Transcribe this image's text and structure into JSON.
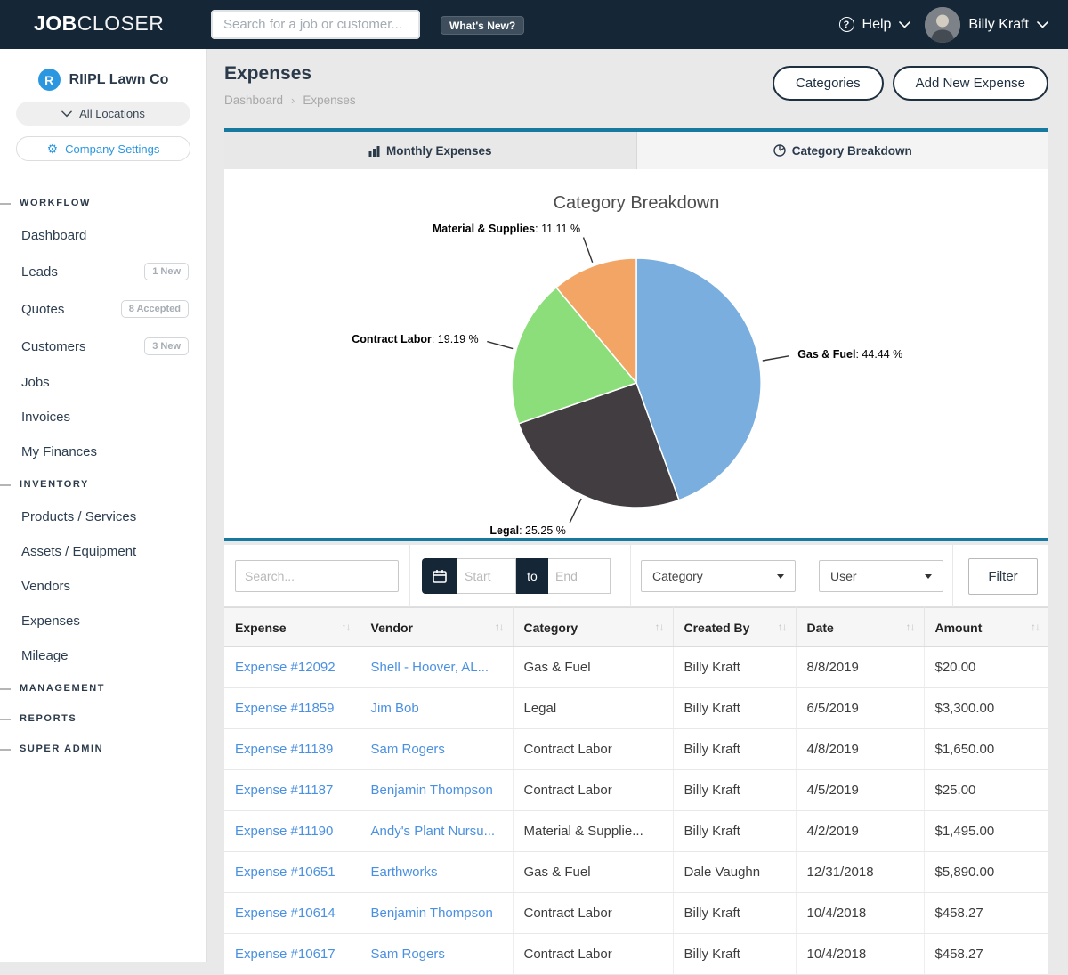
{
  "colors": {
    "navy": "#152636",
    "teal": "#1779a0",
    "accent_blue": "#2b97e0",
    "link_blue": "#4a90e2"
  },
  "navbar": {
    "logo_bold": "JOB",
    "logo_light": "CLOSER",
    "search_placeholder": "Search for a job or customer...",
    "whats_new_label": "What's New?",
    "help_label": "Help",
    "user_name": "Billy Kraft"
  },
  "sidebar": {
    "company_initial": "R",
    "company_name": "RIIPL Lawn Co",
    "location_selector_label": "All Locations",
    "company_settings_label": "Company Settings",
    "sections": [
      {
        "header": "WORKFLOW",
        "items": [
          {
            "label": "Dashboard"
          },
          {
            "label": "Leads",
            "badge": "1 New"
          },
          {
            "label": "Quotes",
            "badge": "8 Accepted"
          },
          {
            "label": "Customers",
            "badge": "3 New"
          },
          {
            "label": "Jobs"
          },
          {
            "label": "Invoices"
          },
          {
            "label": "My Finances"
          }
        ]
      },
      {
        "header": "INVENTORY",
        "items": [
          {
            "label": "Products / Services"
          },
          {
            "label": "Assets / Equipment"
          },
          {
            "label": "Vendors"
          },
          {
            "label": "Expenses"
          },
          {
            "label": "Mileage"
          }
        ]
      },
      {
        "header": "MANAGEMENT",
        "items": []
      },
      {
        "header": "REPORTS",
        "items": []
      },
      {
        "header": "SUPER ADMIN",
        "items": []
      }
    ]
  },
  "header": {
    "title": "Expenses",
    "breadcrumb": [
      "Dashboard",
      "Expenses"
    ],
    "breadcrumb_separator": "›",
    "categories_button": "Categories",
    "add_expense_button": "Add New Expense"
  },
  "tabs": {
    "monthly": "Monthly Expenses",
    "breakdown": "Category Breakdown"
  },
  "chart_data": {
    "type": "pie",
    "title": "Category Breakdown",
    "start_angle_deg": 0,
    "direction": "clockwise",
    "legend": "none",
    "labels": "outside-with-leader-lines",
    "slices": [
      {
        "label": "Gas & Fuel",
        "value": 44.44,
        "display": "44.44 %",
        "color": "#79aede"
      },
      {
        "label": "Legal",
        "value": 25.25,
        "display": "25.25 %",
        "color": "#413d40"
      },
      {
        "label": "Contract Labor",
        "value": 19.19,
        "display": "19.19 %",
        "color": "#8cde7b"
      },
      {
        "label": "Material & Supplies",
        "value": 11.11,
        "display": "11.11 %",
        "color": "#f2a564"
      }
    ]
  },
  "filters": {
    "search_placeholder": "Search...",
    "start_placeholder": "Start",
    "to_label": "to",
    "end_placeholder": "End",
    "category_select_value": "Category",
    "user_select_value": "User",
    "filter_button": "Filter"
  },
  "table": {
    "columns": [
      "Expense",
      "Vendor",
      "Category",
      "Created By",
      "Date",
      "Amount"
    ],
    "rows": [
      [
        "Expense #12092",
        "Shell - Hoover, AL...",
        "Gas & Fuel",
        "Billy Kraft",
        "8/8/2019",
        "$20.00"
      ],
      [
        "Expense #11859",
        "Jim Bob",
        "Legal",
        "Billy Kraft",
        "6/5/2019",
        "$3,300.00"
      ],
      [
        "Expense #11189",
        "Sam Rogers",
        "Contract Labor",
        "Billy Kraft",
        "4/8/2019",
        "$1,650.00"
      ],
      [
        "Expense #11187",
        "Benjamin Thompson",
        "Contract Labor",
        "Billy Kraft",
        "4/5/2019",
        "$25.00"
      ],
      [
        "Expense #11190",
        "Andy's Plant Nursu...",
        "Material & Supplie...",
        "Billy Kraft",
        "4/2/2019",
        "$1,495.00"
      ],
      [
        "Expense #10651",
        "Earthworks",
        "Gas & Fuel",
        "Dale Vaughn",
        "12/31/2018",
        "$5,890.00"
      ],
      [
        "Expense #10614",
        "Benjamin Thompson",
        "Contract Labor",
        "Billy Kraft",
        "10/4/2018",
        "$458.27"
      ],
      [
        "Expense #10617",
        "Sam Rogers",
        "Contract Labor",
        "Billy Kraft",
        "10/4/2018",
        "$458.27"
      ]
    ]
  }
}
